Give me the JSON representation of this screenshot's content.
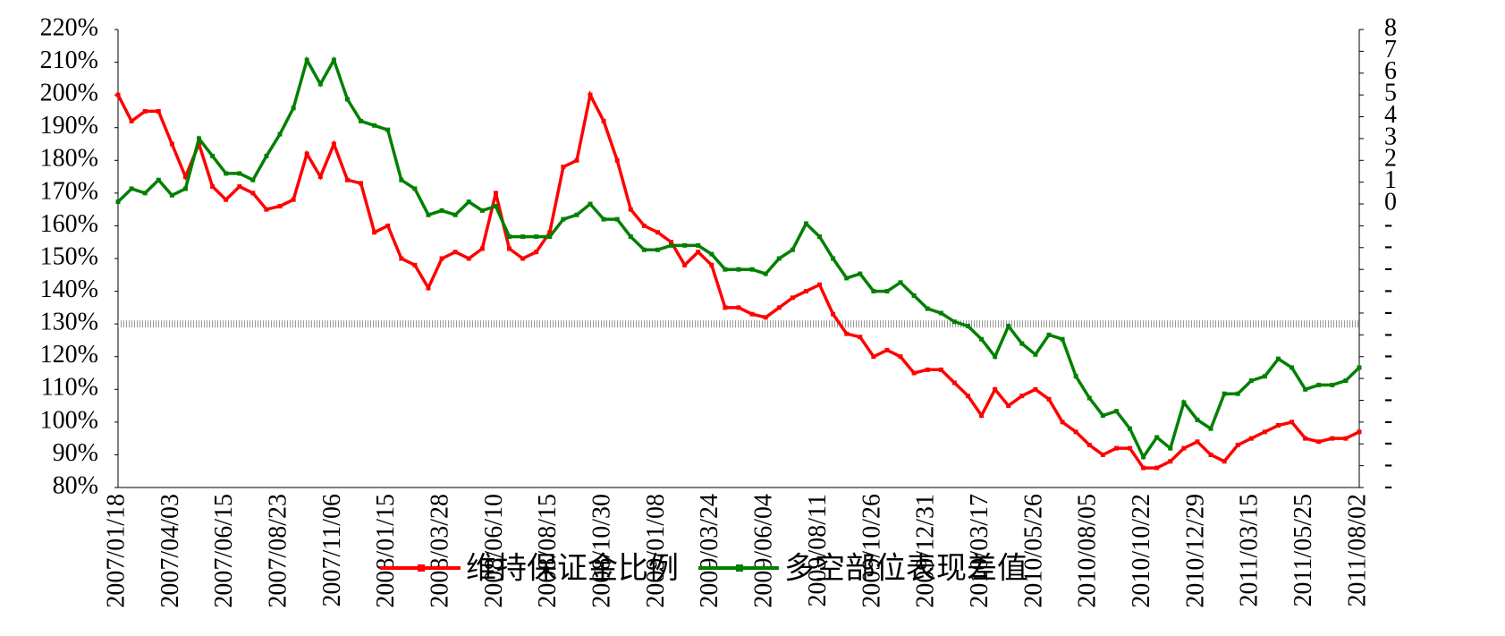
{
  "chart_data": {
    "type": "line",
    "categories": [
      "2007/01/18",
      null,
      null,
      null,
      "2007/04/03",
      null,
      null,
      null,
      "2007/06/15",
      null,
      null,
      null,
      "2007/08/23",
      null,
      null,
      null,
      "2007/11/06",
      null,
      null,
      null,
      "2008/01/15",
      null,
      null,
      null,
      "2008/03/28",
      null,
      null,
      null,
      "2008/06/10",
      null,
      null,
      null,
      "2008/08/15",
      null,
      null,
      null,
      "2008/10/30",
      null,
      null,
      null,
      "2009/01/08",
      null,
      null,
      null,
      "2009/03/24",
      null,
      null,
      null,
      "2009/06/04",
      null,
      null,
      null,
      "2009/08/11",
      null,
      null,
      null,
      "2009/10/26",
      null,
      null,
      null,
      "2009/12/31",
      null,
      null,
      null,
      "2010/03/17",
      null,
      null,
      null,
      "2010/05/26",
      null,
      null,
      null,
      "2010/08/05",
      null,
      null,
      null,
      "2010/10/22",
      null,
      null,
      null,
      "2010/12/29",
      null,
      null,
      null,
      "2011/03/15",
      null,
      null,
      null,
      "2011/05/25",
      null,
      null,
      null,
      "2011/08/02"
    ],
    "series": [
      {
        "name": "维持保证金比例",
        "color": "#ff0000",
        "values": [
          200,
          192,
          195,
          195,
          185,
          175,
          185,
          172,
          168,
          172,
          170,
          165,
          166,
          168,
          182,
          175,
          185,
          174,
          173,
          158,
          160,
          150,
          148,
          141,
          150,
          152,
          150,
          153,
          170,
          153,
          150,
          152,
          158,
          178,
          180,
          200,
          192,
          180,
          165,
          160,
          158,
          155,
          148,
          152,
          148,
          135,
          135,
          133,
          132,
          135,
          138,
          140,
          142,
          133,
          127,
          126,
          120,
          122,
          120,
          115,
          116,
          116,
          112,
          108,
          102,
          110,
          105,
          108,
          110,
          107,
          100,
          97,
          93,
          90,
          92,
          92,
          86,
          86,
          88,
          92,
          94,
          90,
          88,
          93,
          95,
          97,
          99,
          100,
          95,
          94,
          95,
          95,
          97
        ]
      },
      {
        "name": "多空部位表现差值",
        "color": "#008000",
        "axis": "y2",
        "values": [
          0.1,
          0.7,
          0.5,
          1.1,
          0.4,
          0.7,
          3.0,
          2.2,
          1.4,
          1.4,
          1.1,
          2.2,
          3.2,
          4.4,
          6.6,
          5.5,
          6.6,
          4.8,
          3.8,
          3.6,
          3.4,
          1.1,
          0.7,
          -0.5,
          -0.3,
          -0.5,
          0.1,
          -0.3,
          -0.1,
          -1.5,
          -1.5,
          -1.5,
          -1.5,
          -0.7,
          -0.5,
          0,
          -0.7,
          -0.7,
          -1.5,
          -2.1,
          -2.1,
          -1.9,
          -1.9,
          -1.9,
          -2.3,
          -3.0,
          -3.0,
          -3.0,
          -3.2,
          -2.5,
          -2.1,
          -0.9,
          -1.5,
          -2.5,
          -3.4,
          -3.2,
          -4.0,
          -4.0,
          -3.6,
          -4.2,
          -4.8,
          -5.0,
          -5.4,
          -5.6,
          -6.2,
          -7.0,
          -5.6,
          -6.4,
          -6.9,
          -6.0,
          -6.2,
          -7.9,
          -8.9,
          -9.7,
          -9.5,
          -10.3,
          -11.6,
          -10.7,
          -11.2,
          -9.1,
          -9.9,
          -10.3,
          -8.7,
          -8.7,
          -8.1,
          -7.9,
          -7.1,
          -7.5,
          -8.5,
          -8.3,
          -8.3,
          -8.1,
          -7.5
        ]
      }
    ],
    "ylim": [
      80,
      220
    ],
    "yticks": [
      {
        "value": 80,
        "label": "80%"
      },
      {
        "value": 90,
        "label": "90%"
      },
      {
        "value": 100,
        "label": "100%"
      },
      {
        "value": 110,
        "label": "110%"
      },
      {
        "value": 120,
        "label": "120%"
      },
      {
        "value": 130,
        "label": "130%"
      },
      {
        "value": 140,
        "label": "140%"
      },
      {
        "value": 150,
        "label": "150%"
      },
      {
        "value": 160,
        "label": "160%"
      },
      {
        "value": 170,
        "label": "170%"
      },
      {
        "value": 180,
        "label": "180%"
      },
      {
        "value": 190,
        "label": "190%"
      },
      {
        "value": 200,
        "label": "200%"
      },
      {
        "value": 210,
        "label": "210%"
      },
      {
        "value": 220,
        "label": "220%"
      }
    ],
    "y2lim": [
      -13,
      8
    ],
    "y2ticks": [
      {
        "value": -13,
        "label": "-"
      },
      {
        "value": -12,
        "label": "-"
      },
      {
        "value": -11,
        "label": "-"
      },
      {
        "value": -10,
        "label": "-"
      },
      {
        "value": -9,
        "label": "-"
      },
      {
        "value": -8,
        "label": "-"
      },
      {
        "value": -7,
        "label": "-"
      },
      {
        "value": -6,
        "label": "-"
      },
      {
        "value": -5,
        "label": "-"
      },
      {
        "value": -4,
        "label": "-"
      },
      {
        "value": -3,
        "label": "-"
      },
      {
        "value": -2,
        "label": "-"
      },
      {
        "value": -1,
        "label": "-"
      },
      0,
      1,
      2,
      3,
      4,
      5,
      6,
      7,
      8
    ],
    "reference_line": 130,
    "legend": "bottom"
  }
}
